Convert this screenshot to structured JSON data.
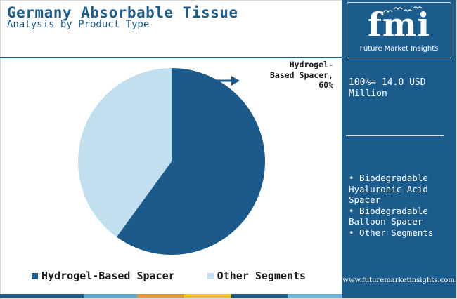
{
  "header": {
    "title": "Germany Absorbable Tissue",
    "subtitle": "Analysis by Product Type"
  },
  "callout": {
    "label": "Hydrogel-\nBased Spacer,\n60%"
  },
  "legend": [
    {
      "label": "Hydrogel-Based Spacer",
      "color": "#1b5a8a"
    },
    {
      "label": "Other Segments",
      "color": "#c2dff0"
    }
  ],
  "chart_data": {
    "type": "pie",
    "title": "Germany Absorbable Tissue",
    "subtitle": "Analysis by Product Type",
    "slices": [
      {
        "label": "Hydrogel-Based Spacer",
        "value": 60,
        "color": "#1b5a8a",
        "data_label": "Hydrogel-Based Spacer, 60%"
      },
      {
        "label": "Other Segments",
        "value": 40,
        "color": "#c2dff0"
      }
    ],
    "legend_position": "bottom-left"
  },
  "panel": {
    "logo_text": "fmi",
    "logo_caption": "Future Market Insights",
    "total": "100%= 14.0 USD Million",
    "other_segments": [
      "• Biodegradable Hyaluronic Acid Spacer",
      "• Biodegradable Balloon Spacer",
      "• Other Segments"
    ],
    "url": "www.futuremarketinsights.com"
  },
  "footer_colors": [
    "#1b5a8a",
    "#1b5a8a",
    "#5ea9d6",
    "#e8983a",
    "#f0c419",
    "#1b5a8a",
    "#6bb5df"
  ]
}
